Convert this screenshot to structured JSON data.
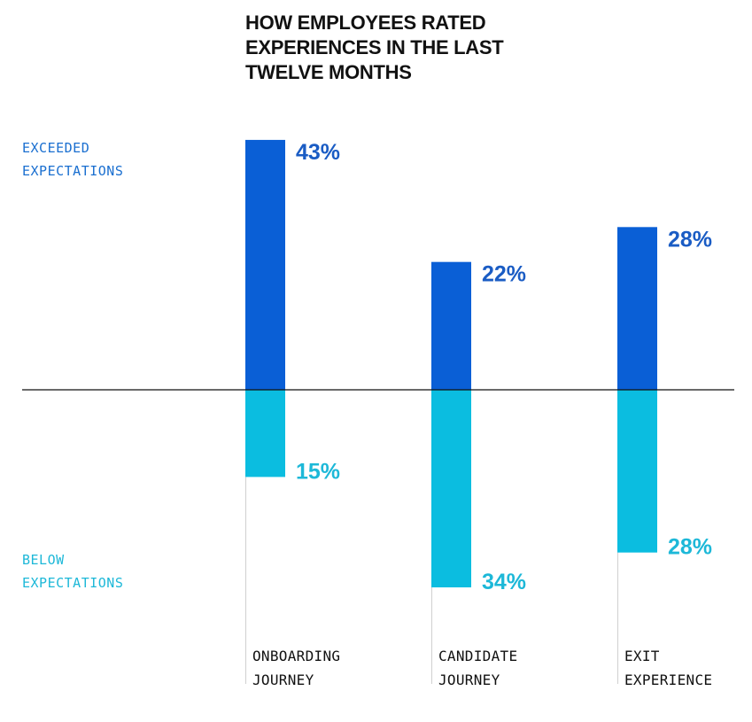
{
  "chart_data": {
    "type": "bar",
    "title": [
      "HOW EMPLOYEES RATED",
      "EXPERIENCES IN THE LAST",
      "TWELVE MONTHS"
    ],
    "categories": [
      [
        "ONBOARDING",
        "JOURNEY"
      ],
      [
        "CANDIDATE",
        "JOURNEY"
      ],
      [
        "EXIT",
        "EXPERIENCE"
      ]
    ],
    "series": [
      {
        "name": [
          "EXCEEDED",
          "EXPECTATIONS"
        ],
        "direction": "up",
        "color": "#0a5fd6",
        "label_color": "#1a5cc4",
        "values": [
          43,
          22,
          28
        ]
      },
      {
        "name": [
          "BELOW",
          "EXPECTATIONS"
        ],
        "direction": "down",
        "color": "#0bbde0",
        "label_color": "#1db8d8",
        "values": [
          15,
          34,
          28
        ]
      }
    ],
    "value_suffix": "%",
    "grid": false,
    "legend": "left"
  }
}
